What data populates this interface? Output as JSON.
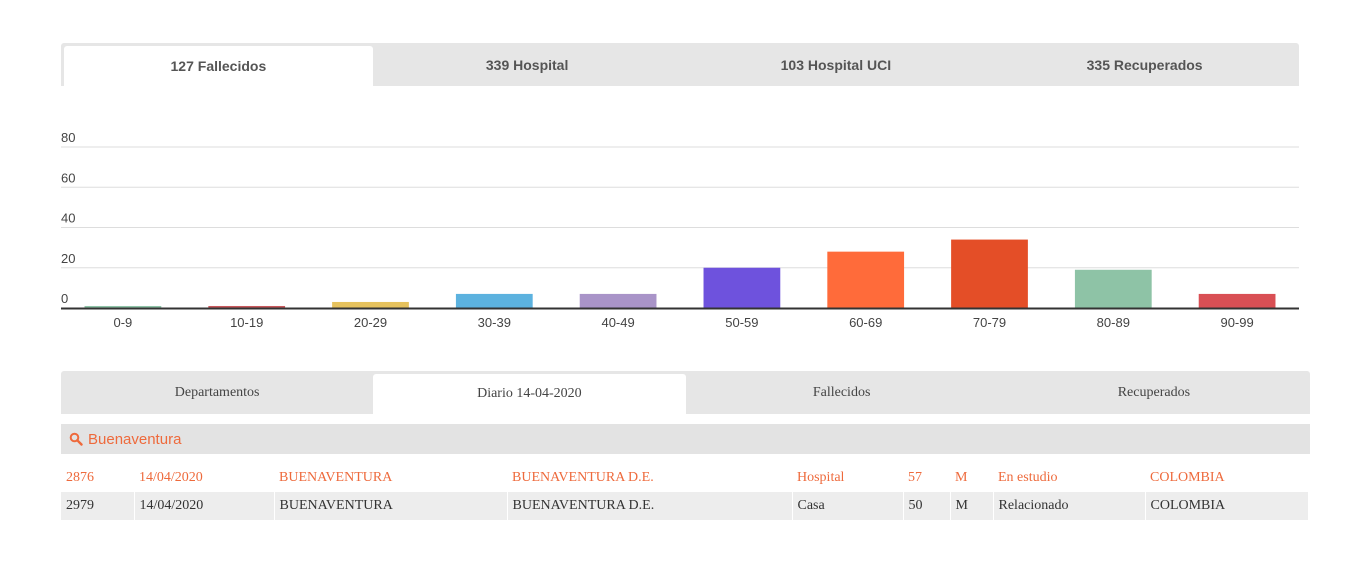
{
  "top_tabs": [
    "127 Fallecidos",
    "339 Hospital",
    "103 Hospital UCI",
    "335 Recuperados"
  ],
  "chart_data": {
    "type": "bar",
    "categories": [
      "0-9",
      "10-19",
      "20-29",
      "30-39",
      "40-49",
      "50-59",
      "60-69",
      "70-79",
      "80-89",
      "90-99"
    ],
    "values": [
      1,
      1,
      3,
      7,
      7,
      20,
      28,
      34,
      19,
      7
    ],
    "colors": [
      "#8fc4a8",
      "#c9585c",
      "#e6c25d",
      "#5cb2df",
      "#a994c8",
      "#6e52dd",
      "#ff6b3a",
      "#e44e27",
      "#8ec3a6",
      "#d94f54"
    ],
    "yticks": [
      0,
      20,
      40,
      60,
      80
    ],
    "ylim": [
      0,
      80
    ],
    "grid": true,
    "title": "",
    "xlabel": "",
    "ylabel": ""
  },
  "bottom_tabs": [
    "Departamentos",
    "Diario 14-04-2020",
    "Fallecidos",
    "Recuperados"
  ],
  "search": {
    "value": "Buenaventura"
  },
  "table": {
    "rows": [
      [
        "2876",
        "14/04/2020",
        "BUENAVENTURA",
        "BUENAVENTURA D.E.",
        "Hospital",
        "57",
        "M",
        "En estudio",
        "COLOMBIA"
      ],
      [
        "2979",
        "14/04/2020",
        "BUENAVENTURA",
        "BUENAVENTURA D.E.",
        "Casa",
        "50",
        "M",
        "Relacionado",
        "COLOMBIA"
      ]
    ]
  }
}
